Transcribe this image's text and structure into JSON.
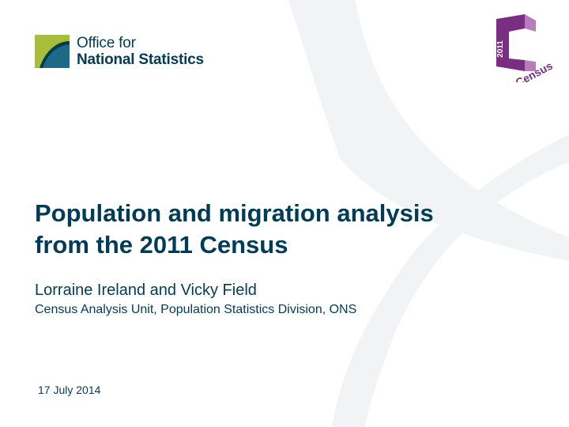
{
  "ons": {
    "line1": "Office for",
    "line2": "National Statistics"
  },
  "census_logo": {
    "year": "2011",
    "word": "Census"
  },
  "slide": {
    "title_line1": "Population and migration analysis",
    "title_line2": "from the 2011 Census",
    "authors": "Lorraine Ireland and Vicky Field",
    "affiliation": "Census Analysis Unit, Population Statistics Division, ONS",
    "date": "17 July 2014"
  },
  "colors": {
    "navy": "#003c57",
    "ons_green": "#a8bd3a",
    "census_purple": "#7a2e82"
  },
  "icons": [
    "ons-logo-mark",
    "census-2011-logo"
  ]
}
